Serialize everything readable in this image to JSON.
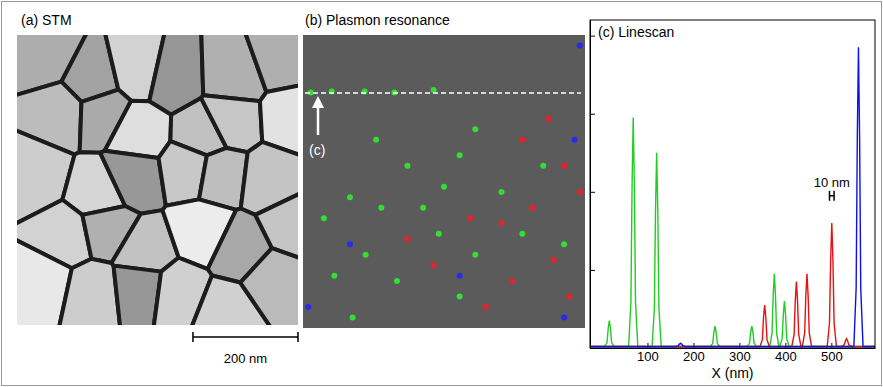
{
  "panel_a": {
    "title": "(a) STM",
    "scale_bar": {
      "label": "200 nm",
      "length_nm": 200
    }
  },
  "panel_b": {
    "title": "(b) Plasmon resonance",
    "linescan_label": "(c)",
    "extent_nm": [
      540,
      560
    ],
    "spots": [
      {
        "color": "#33dd33",
        "points": [
          [
            15,
            110
          ],
          [
            55,
            108
          ],
          [
            118,
            108
          ],
          [
            175,
            110
          ],
          [
            250,
            105
          ],
          [
            330,
            180
          ],
          [
            300,
            230
          ],
          [
            200,
            250
          ],
          [
            90,
            310
          ],
          [
            150,
            330
          ],
          [
            40,
            350
          ],
          [
            260,
            380
          ],
          [
            120,
            420
          ],
          [
            330,
            420
          ],
          [
            60,
            460
          ],
          [
            180,
            470
          ],
          [
            95,
            540
          ],
          [
            300,
            500
          ],
          [
            380,
            300
          ],
          [
            230,
            330
          ],
          [
            420,
            380
          ],
          [
            140,
            200
          ],
          [
            270,
            290
          ],
          [
            500,
            400
          ],
          [
            460,
            250
          ]
        ]
      },
      {
        "color": "#e8202a",
        "points": [
          [
            470,
            160
          ],
          [
            500,
            250
          ],
          [
            440,
            330
          ],
          [
            380,
            360
          ],
          [
            320,
            350
          ],
          [
            480,
            430
          ],
          [
            400,
            470
          ],
          [
            250,
            440
          ],
          [
            350,
            520
          ],
          [
            510,
            500
          ],
          [
            200,
            390
          ],
          [
            420,
            200
          ],
          [
            530,
            300
          ]
        ]
      },
      {
        "color": "#2a2aee",
        "points": [
          [
            530,
            20
          ],
          [
            520,
            200
          ],
          [
            90,
            400
          ],
          [
            10,
            520
          ],
          [
            300,
            460
          ],
          [
            500,
            540
          ]
        ]
      }
    ]
  },
  "chart_data": {
    "type": "line",
    "title": "(c) Linescan",
    "xlabel": "X (nm)",
    "xlim": [
      -25,
      595
    ],
    "xticks": [
      100,
      200,
      300,
      400,
      500
    ],
    "ylim": [
      0,
      4.2
    ],
    "yticks": [
      1,
      2,
      3,
      4
    ],
    "tick_labels": "x",
    "series": [
      {
        "color": "#22cc22",
        "x": [
          -25,
          7,
          12,
          14.5,
          17,
          19.5,
          22,
          27,
          59,
          64,
          66.5,
          69,
          71.5,
          74,
          79,
          110,
          115,
          117.5,
          120,
          122.5,
          125,
          130,
          237,
          242,
          244.5,
          247,
          249.5,
          252,
          257,
          317,
          322,
          324.5,
          327,
          329.5,
          332,
          337,
          366,
          371,
          373.5,
          376,
          378.5,
          381,
          386,
          388,
          393,
          395.5,
          398,
          400.5,
          403,
          408,
          595
        ],
        "values": [
          0.02,
          0.02,
          0.07,
          0.25,
          0.35,
          0.25,
          0.07,
          0.02,
          0.02,
          0.59,
          2.07,
          2.95,
          2.07,
          0.59,
          0.02,
          0.02,
          0.5,
          1.75,
          2.5,
          1.75,
          0.5,
          0.02,
          0.02,
          0.06,
          0.2,
          0.28,
          0.2,
          0.06,
          0.02,
          0.02,
          0.06,
          0.2,
          0.28,
          0.2,
          0.06,
          0.02,
          0.02,
          0.19,
          0.67,
          0.95,
          0.67,
          0.19,
          0.02,
          0.02,
          0.12,
          0.42,
          0.6,
          0.42,
          0.12,
          0.02,
          0.02
        ]
      },
      {
        "color": "#e81010",
        "x": [
          -25,
          345,
          350,
          352.5,
          355,
          357.5,
          360,
          365,
          414,
          419,
          421.5,
          424,
          426.5,
          429,
          434,
          437,
          442,
          444.5,
          447,
          449.5,
          452,
          457,
          491,
          496,
          498.5,
          501,
          503.5,
          506,
          511,
          523,
          528,
          530.5,
          533,
          535.5,
          538,
          543,
          595
        ],
        "values": [
          0.02,
          0.02,
          0.11,
          0.39,
          0.55,
          0.39,
          0.11,
          0.02,
          0.02,
          0.17,
          0.6,
          0.85,
          0.6,
          0.17,
          0.02,
          0.02,
          0.19,
          0.67,
          0.95,
          0.67,
          0.19,
          0.02,
          0.02,
          0.32,
          1.12,
          1.6,
          1.12,
          0.32,
          0.02,
          0.02,
          0.04,
          0.09,
          0.12,
          0.09,
          0.04,
          0.02,
          0.02
        ]
      },
      {
        "color": "#1010ee",
        "x": [
          -25,
          162,
          167,
          169.5,
          172,
          174.5,
          177,
          182,
          549,
          554,
          556.5,
          559,
          561.5,
          564,
          569,
          595
        ],
        "values": [
          0.02,
          0.02,
          0.03,
          0.05,
          0.06,
          0.05,
          0.03,
          0.02,
          0.02,
          0.77,
          2.7,
          3.85,
          2.7,
          0.77,
          0.02,
          0.02
        ]
      }
    ],
    "annotations": [
      {
        "text": "10 nm",
        "x": [
          496,
          506
        ],
        "y": 1.95
      }
    ]
  }
}
